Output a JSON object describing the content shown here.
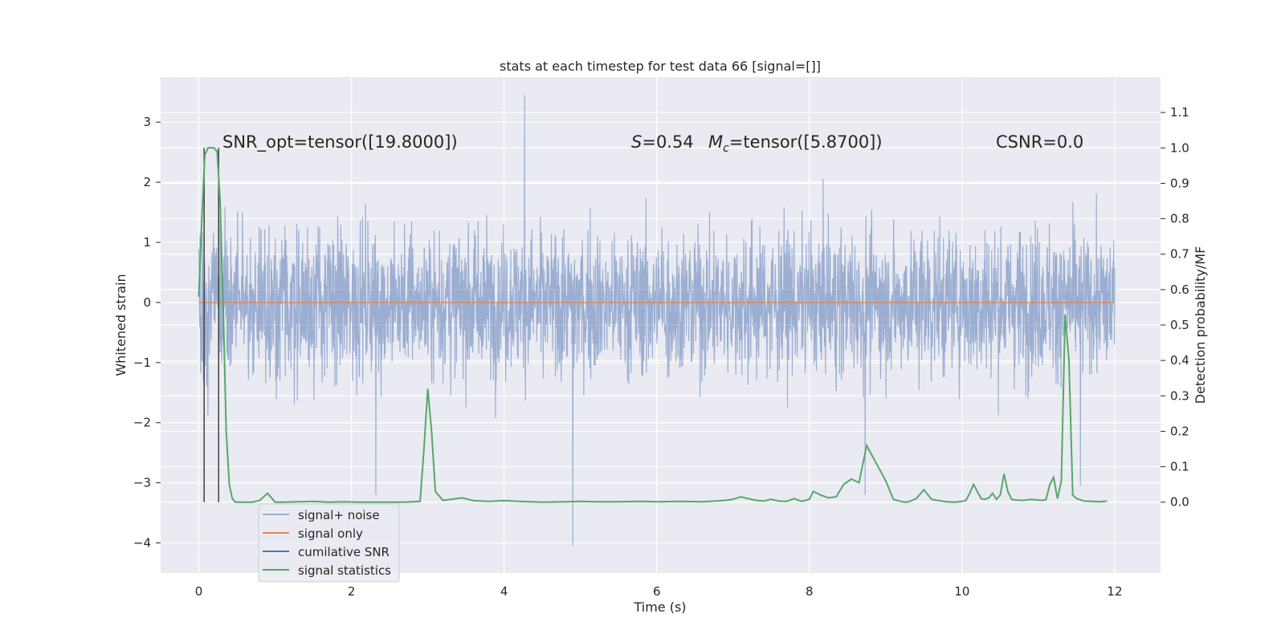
{
  "chart_data": {
    "type": "line",
    "title": "stats at each timestep for test data 66 [signal=[]]",
    "xlabel": "Time (s)",
    "ylabel_left": "Whitened strain",
    "ylabel_right": "Detection probability/MF",
    "xlim": [
      -0.5,
      12.6
    ],
    "ylim_left": [
      -4.5,
      3.75
    ],
    "ylim_right": [
      -0.2,
      1.2
    ],
    "x_ticks": [
      0,
      2,
      4,
      6,
      8,
      10,
      12
    ],
    "x_tick_labels": [
      "0",
      "2",
      "4",
      "6",
      "8",
      "10",
      "12"
    ],
    "y_left_ticks": [
      -4,
      -3,
      -2,
      -1,
      0,
      1,
      2,
      3
    ],
    "y_left_tick_labels": [
      "−4",
      "−3",
      "−2",
      "−1",
      "0",
      "1",
      "2",
      "3"
    ],
    "y_right_ticks": [
      0.0,
      0.1,
      0.2,
      0.3,
      0.4,
      0.5,
      0.6,
      0.7,
      0.8,
      0.9,
      1.0,
      1.1
    ],
    "y_right_tick_labels": [
      "0.0",
      "0.1",
      "0.2",
      "0.3",
      "0.4",
      "0.5",
      "0.6",
      "0.7",
      "0.8",
      "0.9",
      "1.0",
      "1.1"
    ],
    "grid": true,
    "legend_position": "lower-left",
    "annotations": {
      "snr_prefix": "SNR_opt=tensor([19.8000])",
      "s_symbol": "S",
      "s_value": "=0.54",
      "mc_symbol": "M",
      "mc_subscript": "c",
      "mc_value": "=tensor([5.8700])",
      "csnr": "CSNR=0.0"
    },
    "series": [
      {
        "name": "signal+ noise",
        "axis": "left",
        "color": "#4c72b0",
        "opacity": 0.5,
        "t_range": [
          0,
          12
        ],
        "typical_range": [
          -1.5,
          1.5
        ],
        "notable_extremes": [
          {
            "x": 4.27,
            "y": 3.45
          },
          {
            "x": 4.9,
            "y": -4.05
          },
          {
            "x": 2.32,
            "y": -3.2
          },
          {
            "x": 8.73,
            "y": -3.2
          },
          {
            "x": 11.55,
            "y": -3.05
          }
        ]
      },
      {
        "name": "signal only",
        "axis": "left",
        "color": "#dd8452",
        "x": [
          0,
          12
        ],
        "y": [
          0,
          0
        ]
      },
      {
        "name": "cumilative SNR",
        "axis": "left",
        "color": "#4c72b0",
        "x": [],
        "y": []
      },
      {
        "name": "signal statistics",
        "axis": "right",
        "color": "#55a868",
        "x": [
          0.0,
          0.04,
          0.08,
          0.12,
          0.16,
          0.2,
          0.24,
          0.28,
          0.32,
          0.36,
          0.4,
          0.44,
          0.48,
          0.52,
          0.56,
          0.6,
          0.7,
          0.8,
          0.9,
          1.0,
          1.1,
          1.3,
          1.5,
          1.7,
          1.9,
          2.1,
          2.3,
          2.5,
          2.7,
          2.9,
          2.95,
          3.0,
          3.05,
          3.1,
          3.2,
          3.3,
          3.45,
          3.6,
          3.8,
          4.0,
          4.2,
          4.5,
          4.8,
          5.0,
          5.2,
          5.5,
          5.8,
          6.0,
          6.3,
          6.6,
          6.9,
          7.0,
          7.1,
          7.2,
          7.3,
          7.4,
          7.5,
          7.6,
          7.7,
          7.8,
          7.9,
          8.0,
          8.05,
          8.15,
          8.25,
          8.35,
          8.45,
          8.55,
          8.65,
          8.75,
          8.85,
          9.0,
          9.1,
          9.2,
          9.25,
          9.3,
          9.4,
          9.5,
          9.6,
          9.7,
          9.8,
          9.9,
          10.0,
          10.05,
          10.1,
          10.15,
          10.2,
          10.25,
          10.3,
          10.35,
          10.4,
          10.45,
          10.5,
          10.55,
          10.6,
          10.65,
          10.7,
          10.8,
          10.9,
          11.0,
          11.05,
          11.1,
          11.15,
          11.2,
          11.25,
          11.3,
          11.35,
          11.4,
          11.45,
          11.5,
          11.6,
          11.7,
          11.8,
          11.9
        ],
        "y": [
          0.58,
          0.8,
          0.98,
          1.0,
          1.0,
          1.0,
          0.99,
          0.85,
          0.55,
          0.2,
          0.05,
          0.01,
          0.0,
          0.0,
          0.0,
          0.0,
          0.0,
          0.005,
          0.025,
          0.0,
          0.0,
          0.001,
          0.002,
          0.0,
          0.001,
          0.0,
          0.0,
          0.0,
          0.0,
          0.002,
          0.15,
          0.32,
          0.2,
          0.03,
          0.005,
          0.008,
          0.012,
          0.004,
          0.002,
          0.004,
          0.002,
          0.0,
          0.001,
          0.002,
          0.001,
          0.001,
          0.002,
          0.001,
          0.002,
          0.001,
          0.005,
          0.008,
          0.015,
          0.01,
          0.005,
          0.003,
          0.008,
          0.003,
          0.002,
          0.01,
          0.002,
          0.008,
          0.03,
          0.02,
          0.012,
          0.015,
          0.05,
          0.065,
          0.055,
          0.16,
          0.12,
          0.06,
          0.008,
          0.002,
          0.0,
          0.001,
          0.01,
          0.035,
          0.008,
          0.004,
          0.001,
          0.0,
          0.002,
          0.005,
          0.025,
          0.05,
          0.03,
          0.01,
          0.008,
          0.012,
          0.025,
          0.008,
          0.02,
          0.08,
          0.03,
          0.008,
          0.006,
          0.005,
          0.008,
          0.006,
          0.005,
          0.007,
          0.05,
          0.07,
          0.01,
          0.06,
          0.53,
          0.4,
          0.02,
          0.01,
          0.003,
          0.002,
          0.001,
          0.003
        ]
      }
    ],
    "vertical_markers": {
      "color": "#404040",
      "x": [
        0.07,
        0.26
      ],
      "y_top": 1.0
    }
  }
}
